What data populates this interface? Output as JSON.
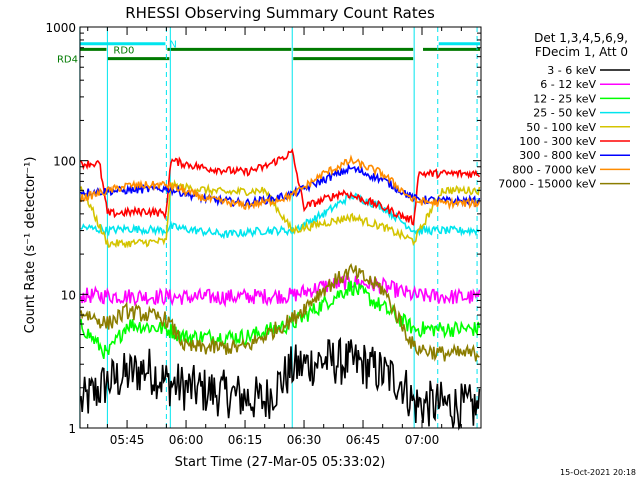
{
  "chart_data": {
    "type": "line",
    "title": "RHESSI Observing Summary Count Rates",
    "xlabel": "Start Time (27-Mar-05 05:33:02)",
    "ylabel": "Count Rate (s⁻¹ detector⁻¹)",
    "x_axis": {
      "unit": "time",
      "range": [
        "05:33:02",
        "07:15:00"
      ],
      "ticks": [
        "05:45",
        "06:00",
        "06:15",
        "06:30",
        "06:45",
        "07:00"
      ]
    },
    "y_axis": {
      "scale": "log",
      "range": [
        1,
        1000
      ],
      "ticks": [
        "1",
        "10",
        "100",
        "1000"
      ]
    },
    "grid": false,
    "legend_position": "right",
    "legend_header": [
      "Det 1,3,4,5,6,9,",
      "FDecim 1, Att 0"
    ],
    "footer_date": "15-Oct-2021 20:18",
    "flags": [
      {
        "label": "N",
        "color": "#00e5ee",
        "y": 750,
        "segments": [
          [
            "05:33",
            "05:55"
          ],
          [
            "07:04",
            "07:15"
          ]
        ]
      },
      {
        "label": "RD0",
        "color": "#007a00",
        "y": 680,
        "segments": [
          [
            "05:33",
            "05:40"
          ],
          [
            "05:55",
            "06:27"
          ],
          [
            "06:27",
            "06:58"
          ],
          [
            "07:00",
            "07:15"
          ]
        ]
      },
      {
        "label": "RD4",
        "color": "#007a00",
        "y": 580,
        "segments": [
          [
            "05:40",
            "05:56"
          ],
          [
            "06:27",
            "06:58"
          ]
        ]
      }
    ],
    "vertical_lines": {
      "solid": [
        "05:33",
        "05:40",
        "05:56",
        "06:27",
        "06:58"
      ],
      "dashed": [
        "05:55",
        "07:04",
        "07:14"
      ]
    },
    "series": [
      {
        "name": "3 - 6 keV",
        "color": "#000000",
        "x": [
          "05:33",
          "05:40",
          "05:45",
          "05:50",
          "05:55",
          "06:00",
          "06:10",
          "06:20",
          "06:27",
          "06:35",
          "06:45",
          "06:55",
          "06:58",
          "07:05",
          "07:14"
        ],
        "values": [
          1.5,
          2.2,
          2.5,
          2.8,
          2.2,
          2.0,
          1.8,
          1.6,
          2.8,
          3.2,
          3.0,
          2.2,
          1.5,
          1.5,
          1.4
        ]
      },
      {
        "name": "6 - 12 keV",
        "color": "#ff00ff",
        "x": [
          "05:33",
          "05:45",
          "06:00",
          "06:15",
          "06:27",
          "06:35",
          "06:42",
          "06:50",
          "06:58",
          "07:05",
          "07:14"
        ],
        "values": [
          9.8,
          9.7,
          9.5,
          9.6,
          9.8,
          11.5,
          12.5,
          11.5,
          9.8,
          9.6,
          9.5
        ]
      },
      {
        "name": "12 - 25 keV",
        "color": "#00ff00",
        "x": [
          "05:33",
          "05:40",
          "05:45",
          "05:55",
          "06:00",
          "06:15",
          "06:27",
          "06:35",
          "06:42",
          "06:50",
          "06:58",
          "07:05",
          "07:14"
        ],
        "values": [
          6.0,
          3.5,
          6.0,
          5.5,
          4.8,
          4.8,
          6.0,
          8.5,
          11.5,
          8.0,
          5.5,
          5.5,
          5.5
        ]
      },
      {
        "name": "25 - 50 keV",
        "color": "#00e5ee",
        "x": [
          "05:33",
          "05:40",
          "05:45",
          "05:55",
          "05:56",
          "06:10",
          "06:20",
          "06:27",
          "06:35",
          "06:42",
          "06:50",
          "06:58",
          "07:05",
          "07:14"
        ],
        "values": [
          32,
          30,
          31,
          30,
          32,
          28,
          30,
          30,
          40,
          55,
          45,
          30,
          30,
          30
        ]
      },
      {
        "name": "50 - 100 keV",
        "color": "#d4c400",
        "x": [
          "05:33",
          "05:40",
          "05:45",
          "05:55",
          "05:56",
          "06:10",
          "06:20",
          "06:27",
          "06:35",
          "06:42",
          "06:50",
          "06:58",
          "07:05",
          "07:14"
        ],
        "values": [
          68,
          24,
          24,
          25,
          65,
          58,
          60,
          30,
          34,
          38,
          32,
          25,
          60,
          60
        ]
      },
      {
        "name": "100 - 300 keV",
        "color": "#ff0000",
        "x": [
          "05:33",
          "05:38",
          "05:40",
          "05:50",
          "05:55",
          "05:56",
          "06:05",
          "06:15",
          "06:20",
          "06:27",
          "06:30",
          "06:40",
          "06:50",
          "06:58",
          "06:59",
          "07:14"
        ],
        "values": [
          95,
          95,
          40,
          42,
          40,
          100,
          88,
          82,
          90,
          115,
          45,
          58,
          45,
          35,
          80,
          80
        ]
      },
      {
        "name": "300 - 800 keV",
        "color": "#0000ff",
        "x": [
          "05:33",
          "05:45",
          "05:55",
          "06:05",
          "06:15",
          "06:22",
          "06:27",
          "06:35",
          "06:42",
          "06:50",
          "06:58",
          "07:05",
          "07:14"
        ],
        "values": [
          58,
          60,
          62,
          52,
          48,
          52,
          56,
          72,
          88,
          72,
          52,
          50,
          50
        ]
      },
      {
        "name": "800 - 7000 keV",
        "color": "#ff8c00",
        "x": [
          "05:33",
          "05:45",
          "05:55",
          "06:05",
          "06:15",
          "06:22",
          "06:27",
          "06:35",
          "06:42",
          "06:50",
          "06:58",
          "07:05",
          "07:14"
        ],
        "values": [
          52,
          65,
          66,
          52,
          46,
          50,
          55,
          80,
          100,
          80,
          50,
          48,
          48
        ]
      },
      {
        "name": "7000 - 15000 keV",
        "color": "#8b7d00",
        "x": [
          "05:33",
          "05:40",
          "05:45",
          "05:55",
          "06:00",
          "06:15",
          "06:27",
          "06:35",
          "06:42",
          "06:50",
          "06:58",
          "07:05",
          "07:14"
        ],
        "values": [
          7.5,
          6.0,
          7.5,
          6.5,
          4.0,
          4.0,
          6.5,
          11.0,
          15.0,
          11.0,
          4.0,
          3.6,
          3.6
        ]
      }
    ]
  }
}
